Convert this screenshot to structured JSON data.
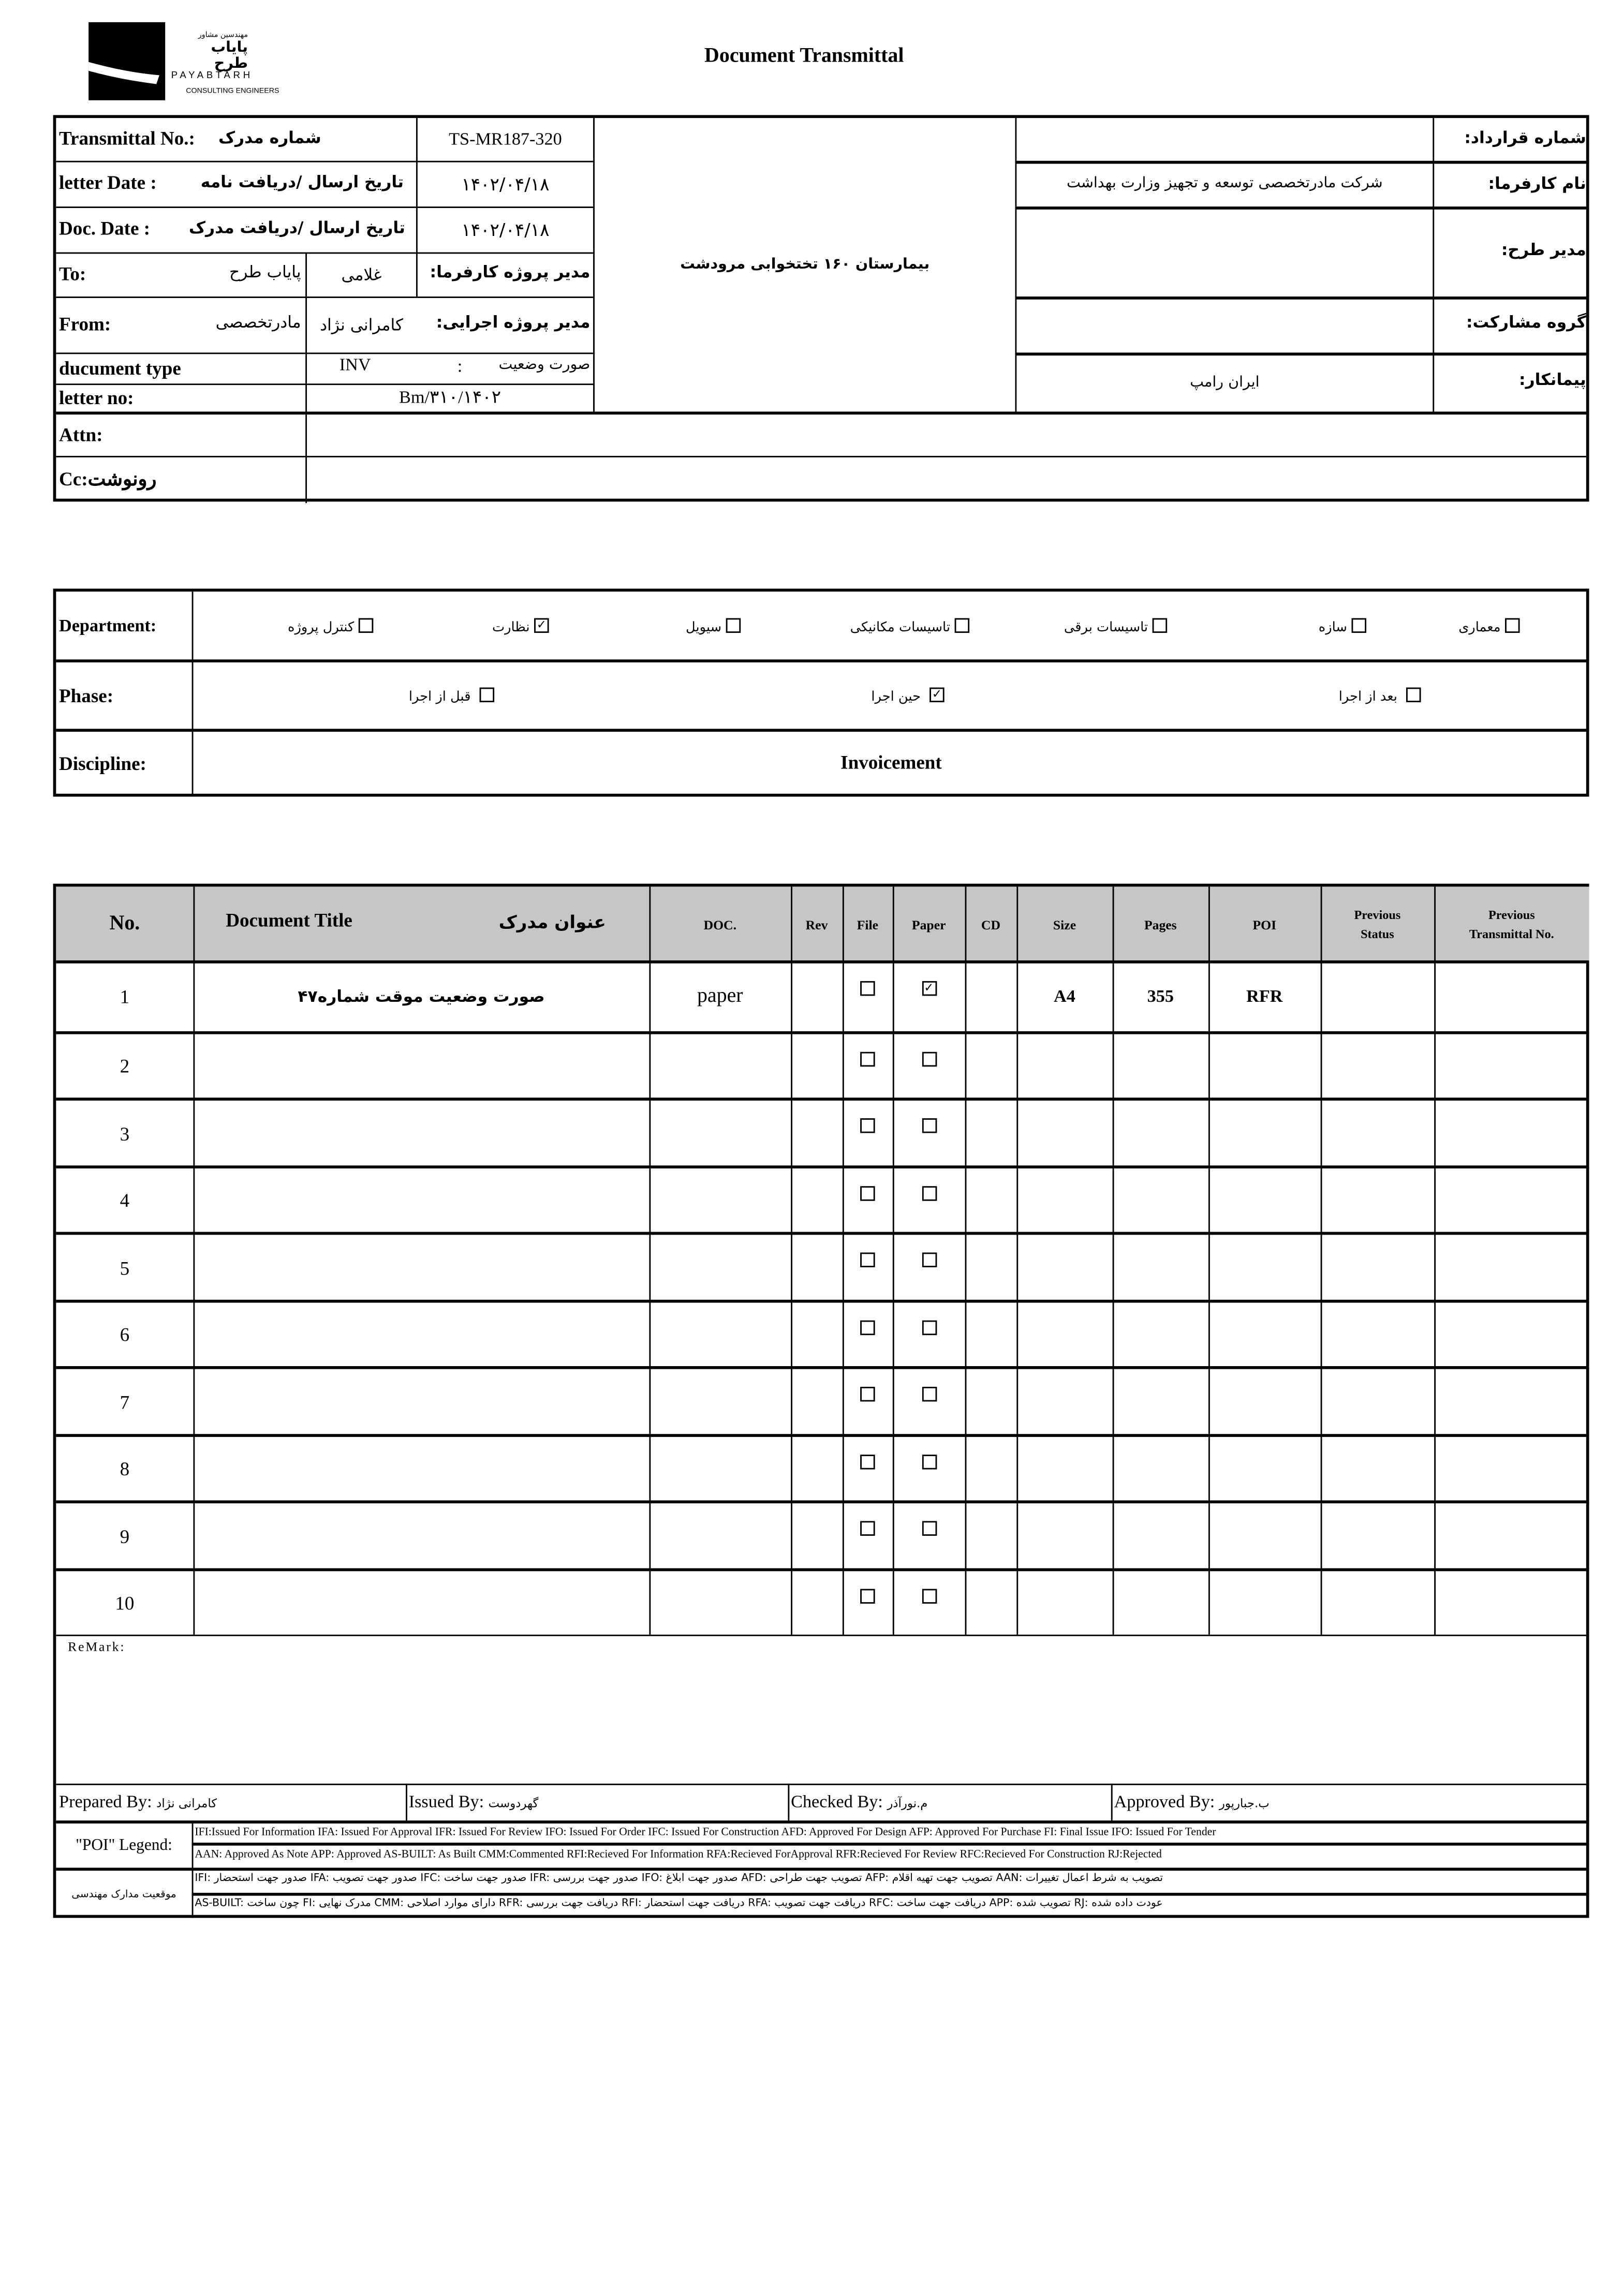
{
  "logo": {
    "fa_line1": "مهندسین مشاور",
    "fa_line2": "پایاب طرح",
    "name": "PAYABTARH",
    "subtitle": "CONSULTING ENGINEERS"
  },
  "title": "Document Transmittal",
  "header": {
    "transmittal_label": "Transmittal No.:",
    "transmittal_label_fa": "شماره مدرک",
    "transmittal_value": "TS-MR187-320",
    "letter_date_label": "letter Date  :",
    "letter_date_label_fa": "تاریخ ارسال /دریافت نامه",
    "letter_date_value": "۱۴۰۲/۰۴/۱۸",
    "doc_date_label": "Doc. Date :",
    "doc_date_label_fa": "تاریخ ارسال /دریافت مدرک",
    "doc_date_value": "۱۴۰۲/۰۴/۱۸",
    "to_label": "To:",
    "to_value": "پایاب طرح",
    "to_person": "غلامی",
    "to_role": "مدیر پروژه کارفرما:",
    "from_label": "From:",
    "from_value": "مادرتخصصی",
    "from_person": "کامرانی نژاد",
    "from_role": "مدیر پروژه اجرایی:",
    "doc_type_label": "ducument type",
    "doc_type_code": "INV",
    "doc_type_sep": ":",
    "doc_type_fa": "صورت وضعیت",
    "letter_no_label": "letter no:",
    "letter_no_value": "Bm/۳۱۰/۱۴۰۲",
    "project": "بیمارستان ۱۶۰ تختخوابی مرودشت",
    "contract_no_label": "شماره قرارداد:",
    "contract_no_value": "",
    "client_label": "نام کارفرما:",
    "client_value": "شرکت مادرتخصصی توسعه و تجهیز وزارت بهداشت",
    "pm_label": "مدیر طرح:",
    "pm_value": "",
    "partner_label": "گروه مشارکت:",
    "partner_value": "",
    "contractor_label": "پیمانکار:",
    "contractor_value": "ایران رامپ",
    "attn_label": "Attn:",
    "attn_value": "",
    "cc_label": "Cc:رونوشت",
    "cc_value": ""
  },
  "department": {
    "label": "Department:",
    "items": [
      {
        "label": "کنترل پروژه",
        "checked": false
      },
      {
        "label": "نظارت",
        "checked": true
      },
      {
        "label": "سیویل",
        "checked": false
      },
      {
        "label": "تاسیسات مکانیکی",
        "checked": false
      },
      {
        "label": "تاسیسات برقی",
        "checked": false
      },
      {
        "label": "سازه",
        "checked": false
      },
      {
        "label": "معماری",
        "checked": false
      }
    ]
  },
  "phase": {
    "label": "Phase:",
    "items": [
      {
        "label": "قبل از اجرا",
        "checked": false
      },
      {
        "label": "حین اجرا",
        "checked": true
      },
      {
        "label": "بعد از اجرا",
        "checked": false
      }
    ]
  },
  "discipline": {
    "label": "Discipline:",
    "value": "Invoicement"
  },
  "table": {
    "headers": {
      "no": "No.",
      "title": "Document Title",
      "title_fa": "عنوان مدرک",
      "doc": "DOC.",
      "rev": "Rev",
      "file": "File",
      "paper": "Paper",
      "cd": "CD",
      "size": "Size",
      "pages": "Pages",
      "poi": "POI",
      "prev_status_1": "Previous",
      "prev_status_2": "Status",
      "prev_no_1": "Previous",
      "prev_no_2": "Transmittal No."
    },
    "rows": [
      {
        "no": "1",
        "title": "صورت وضعیت موقت شماره۴۷",
        "doc": "paper",
        "rev": "",
        "file": false,
        "paper": true,
        "cd": "",
        "size": "A4",
        "pages": "355",
        "poi": "RFR",
        "prev_status": "",
        "prev_no": ""
      },
      {
        "no": "2",
        "file": false,
        "paper": false
      },
      {
        "no": "3",
        "file": false,
        "paper": false
      },
      {
        "no": "4",
        "file": false,
        "paper": false
      },
      {
        "no": "5",
        "file": false,
        "paper": false
      },
      {
        "no": "6",
        "file": false,
        "paper": false
      },
      {
        "no": "7",
        "file": false,
        "paper": false
      },
      {
        "no": "8",
        "file": false,
        "paper": false
      },
      {
        "no": "9",
        "file": false,
        "paper": false
      },
      {
        "no": "10",
        "file": false,
        "paper": false
      }
    ]
  },
  "remark_label": "ReMark:",
  "signatures": {
    "prepared": "Prepared By:",
    "prepared_name": "کامرانی نژاد",
    "issued": "Issued By:",
    "issued_name": "گهردوست",
    "checked": "Checked By:",
    "checked_name": "م.نورآذر",
    "approved": "Approved By:",
    "approved_name": "ب.جبارپور"
  },
  "legend": {
    "poi_label": "\"POI\" Legend:",
    "poi_line1": "IFI:Issued For Information  IFA: Issued For Approval  IFR: Issued For Review   IFO: Issued For Order  IFC: Issued For Construction AFD: Approved For Design AFP: Approved For Purchase  FI: Final Issue  IFO: Issued For Tender",
    "poi_line2": "AAN: Approved As Note  APP: Approved  AS-BUILT: As Built CMM:Commented  RFI:Recieved For Information   RFA:Recieved ForApproval   RFR:Recieved For Review  RFC:Recieved For Construction  RJ:Rejected",
    "fa_label": "موقعیت مدارک مهندسی",
    "fa_line1": "IFI:  صدور جهت استحضار    IFA: صدور جهت تصویب   IFC: صدور جهت  ساخت   IFR: صدور جهت بررسی   IFO: صدور جهت ابلاغ   AFD: تصویب جهت طراحی    AFP: تصویب جهت تهیه اقلام    AAN: تصویب به شرط اعمال تغییرات",
    "fa_line2": "AS-BUILT: چون ساخت   FI: مدرک نهایی   CMM: دارای موارد اصلاحی   RFR: دریافت جهت بررسی   RFI: دریافت جهت استحضار   RFA: دریافت جهت تصویب   RFC: دریافت جهت ساخت   APP: تصویب شده   RJ: عودت داده شده"
  }
}
